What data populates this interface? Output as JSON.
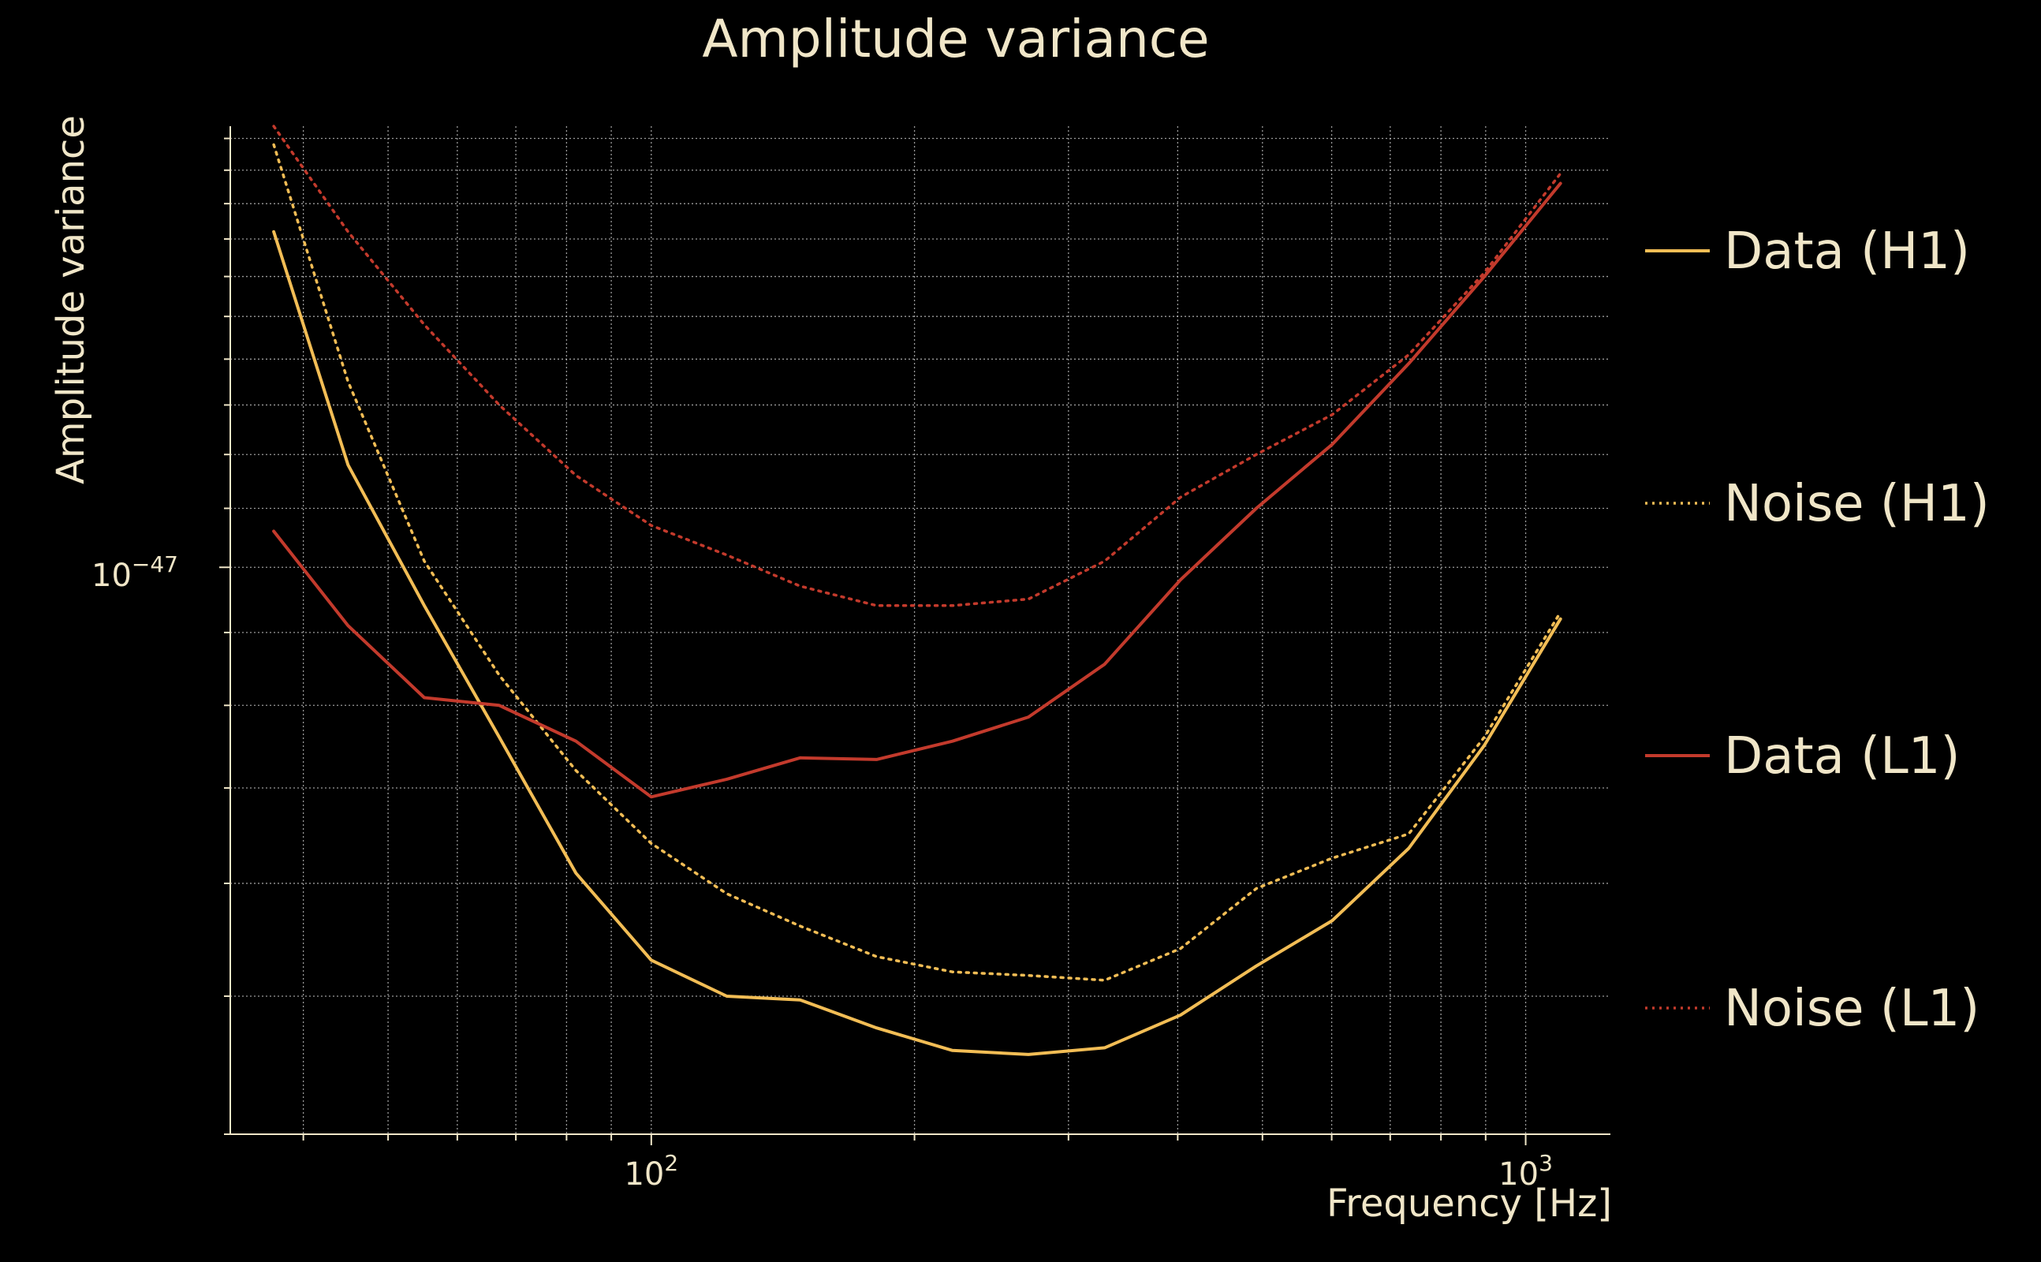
{
  "chart_data": {
    "type": "line",
    "title": "Amplitude variance",
    "xlabel": "Frequency [Hz]",
    "ylabel": "Amplitude variance",
    "xscale": "log",
    "yscale": "log",
    "xlim": [
      33,
      1250
    ],
    "ylim": [
      4e-48,
      2.04e-47
    ],
    "grid": true,
    "legend_position": "right",
    "x_ticks": [
      {
        "value": 100,
        "base": "10",
        "exp": "2"
      },
      {
        "value": 1000,
        "base": "10",
        "exp": "3"
      }
    ],
    "y_ticks": [
      {
        "value": 1e-47,
        "base": "10",
        "exp": "−47"
      }
    ],
    "x": [
      37,
      45,
      55,
      67,
      82,
      100,
      122,
      148,
      181,
      221,
      270,
      330,
      403,
      492,
      601,
      735,
      897,
      1096
    ],
    "series": [
      {
        "name": "Data (H1)",
        "color": "#f2bd55",
        "style": "solid",
        "values": [
          1.72e-47,
          1.18e-47,
          9.4e-48,
          7.6e-48,
          6.1e-48,
          5.3e-48,
          5e-48,
          4.97e-48,
          4.75e-48,
          4.58e-48,
          4.55e-48,
          4.6e-48,
          4.85e-48,
          5.25e-48,
          5.65e-48,
          6.35e-48,
          7.5e-48,
          9.2e-48
        ]
      },
      {
        "name": "Noise (H1)",
        "color": "#f2bd55",
        "style": "dotted",
        "values": [
          1.98e-47,
          1.35e-47,
          1.01e-47,
          8.4e-48,
          7.2e-48,
          6.4e-48,
          5.9e-48,
          5.6e-48,
          5.33e-48,
          5.2e-48,
          5.17e-48,
          5.13e-48,
          5.4e-48,
          5.95e-48,
          6.25e-48,
          6.5e-48,
          7.6e-48,
          9.3e-48
        ]
      },
      {
        "name": "Data (L1)",
        "color": "#c33a2c",
        "style": "solid",
        "values": [
          1.06e-47,
          9.1e-48,
          8.1e-48,
          8e-48,
          7.55e-48,
          6.9e-48,
          7.1e-48,
          7.35e-48,
          7.33e-48,
          7.55e-48,
          7.85e-48,
          8.55e-48,
          9.8e-48,
          1.1e-47,
          1.22e-47,
          1.39e-47,
          1.6e-47,
          1.86e-47
        ]
      },
      {
        "name": "Noise (L1)",
        "color": "#c33a2c",
        "style": "dotted",
        "values": [
          2.04e-47,
          1.72e-47,
          1.48e-47,
          1.3e-47,
          1.16e-47,
          1.07e-47,
          1.02e-47,
          9.7e-48,
          9.4e-48,
          9.4e-48,
          9.5e-48,
          1.01e-47,
          1.12e-47,
          1.2e-47,
          1.28e-47,
          1.41e-47,
          1.61e-47,
          1.89e-47
        ]
      }
    ]
  }
}
